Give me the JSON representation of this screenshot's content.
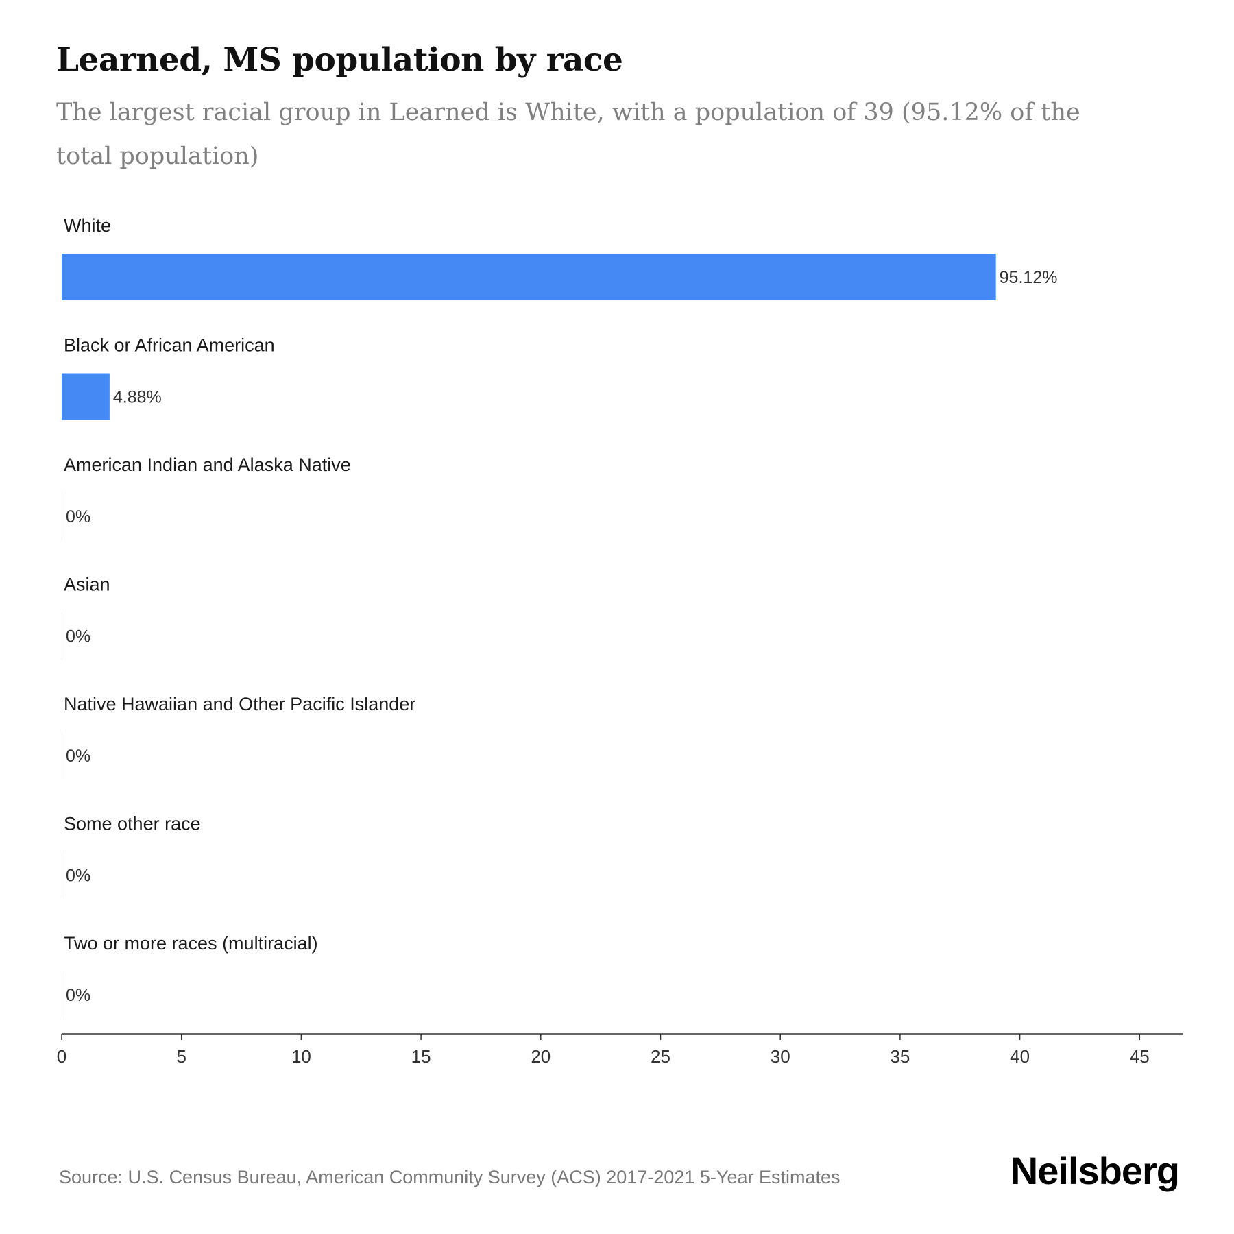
{
  "header": {
    "title": "Learned, MS population by race",
    "subtitle": "The largest racial group in Learned is White, with a population of 39 (95.12% of the total population)"
  },
  "chart_data": {
    "type": "bar",
    "orientation": "horizontal",
    "categories": [
      "White",
      "Black or African American",
      "American Indian and Alaska Native",
      "Asian",
      "Native Hawaiian and Other Pacific Islander",
      "Some other race",
      "Two or more races (multiracial)"
    ],
    "values": [
      39,
      2,
      0,
      0,
      0,
      0,
      0
    ],
    "data_labels": [
      "95.12%",
      "4.88%",
      "0%",
      "0%",
      "0%",
      "0%",
      "0%"
    ],
    "xlim": [
      0,
      45
    ],
    "xticks": [
      0,
      5,
      10,
      15,
      20,
      25,
      30,
      35,
      40,
      45
    ],
    "bar_color": "#4589f5",
    "grid": false,
    "legend": "none"
  },
  "footer": {
    "source": "Source: U.S. Census Bureau, American Community Survey (ACS) 2017-2021 5-Year Estimates",
    "brand": "Neilsberg"
  }
}
